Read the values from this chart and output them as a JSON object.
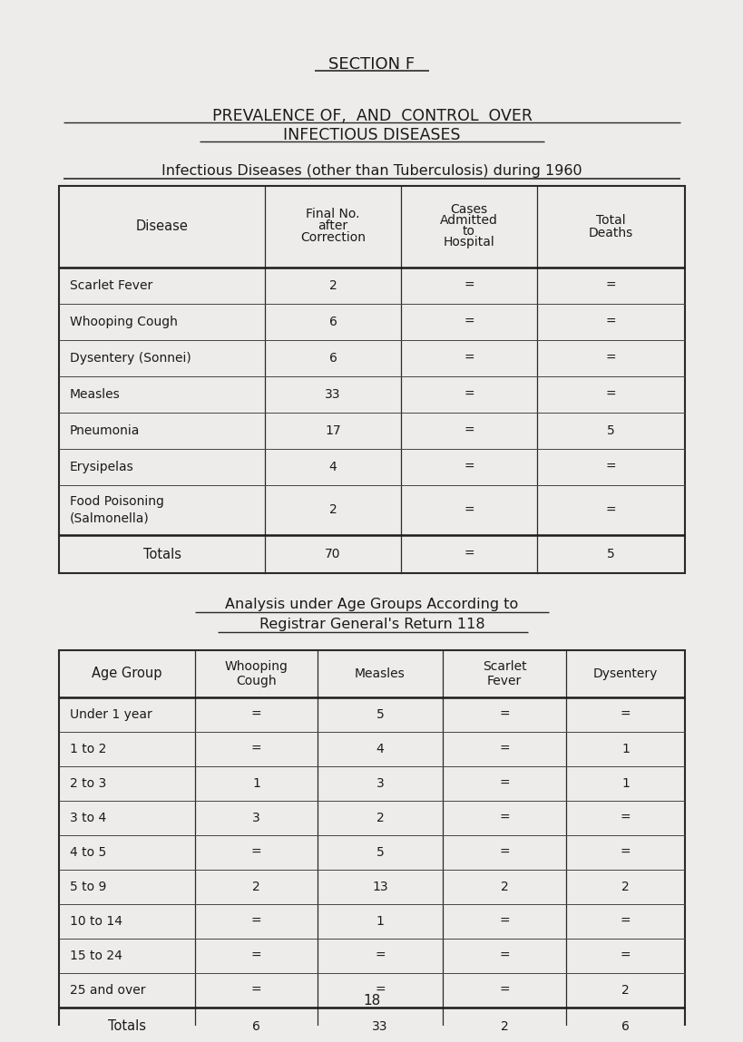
{
  "bg_color": "#edecea",
  "title1": "SECTION F",
  "title2": "PREVALENCE OF,  AND  CONTROL  OVER",
  "title3": "INFECTIOUS DISEASES",
  "subtitle": "Infectious Diseases (other than Tuberculosis) during 1960",
  "table1_headers_col1": "Disease",
  "table1_headers_col2a": "Final No.",
  "table1_headers_col2b": "after",
  "table1_headers_col2c": "Correction",
  "table1_headers_col3a": "Cases",
  "table1_headers_col3b": "Admitted",
  "table1_headers_col3c": "to",
  "table1_headers_col3d": "Hospital",
  "table1_headers_col4a": "Total",
  "table1_headers_col4b": "Deaths",
  "dash": "=",
  "table1_rows": [
    [
      "Scarlet Fever",
      "2",
      "=",
      "="
    ],
    [
      "Whooping Cough",
      "6",
      "=",
      "="
    ],
    [
      "Dysentery (Sonnei)",
      "6",
      "=",
      "="
    ],
    [
      "Measles",
      "33",
      "=",
      "="
    ],
    [
      "Pneumonia",
      "17",
      "=",
      "5"
    ],
    [
      "Erysipelas",
      "4",
      "=",
      "="
    ],
    [
      "Food Poisoning",
      "(Salmonella)",
      "2",
      "=",
      "="
    ]
  ],
  "table1_totals": [
    "Totals",
    "70",
    "=",
    "5"
  ],
  "table2_title1": "Analysis under Age Groups According to",
  "table2_title2": "Registrar General's Return 118",
  "table2_rows": [
    [
      "Under 1 year",
      "=",
      "5",
      "=",
      "="
    ],
    [
      "1 to 2",
      "=",
      "4",
      "=",
      "1"
    ],
    [
      "2 to 3",
      "1",
      "3",
      "=",
      "1"
    ],
    [
      "3 to 4",
      "3",
      "2",
      "=",
      "="
    ],
    [
      "4 to 5",
      "=",
      "5",
      "=",
      "="
    ],
    [
      "5 to 9",
      "2",
      "13",
      "2",
      "2"
    ],
    [
      "10 to 14",
      "=",
      "1",
      "=",
      "="
    ],
    [
      "15 to 24",
      "=",
      "=",
      "=",
      "="
    ],
    [
      "25 and over",
      "=",
      "=",
      "=",
      "2"
    ]
  ],
  "table2_totals": [
    "Totals",
    "6",
    "33",
    "2",
    "6"
  ],
  "page_number": "18"
}
